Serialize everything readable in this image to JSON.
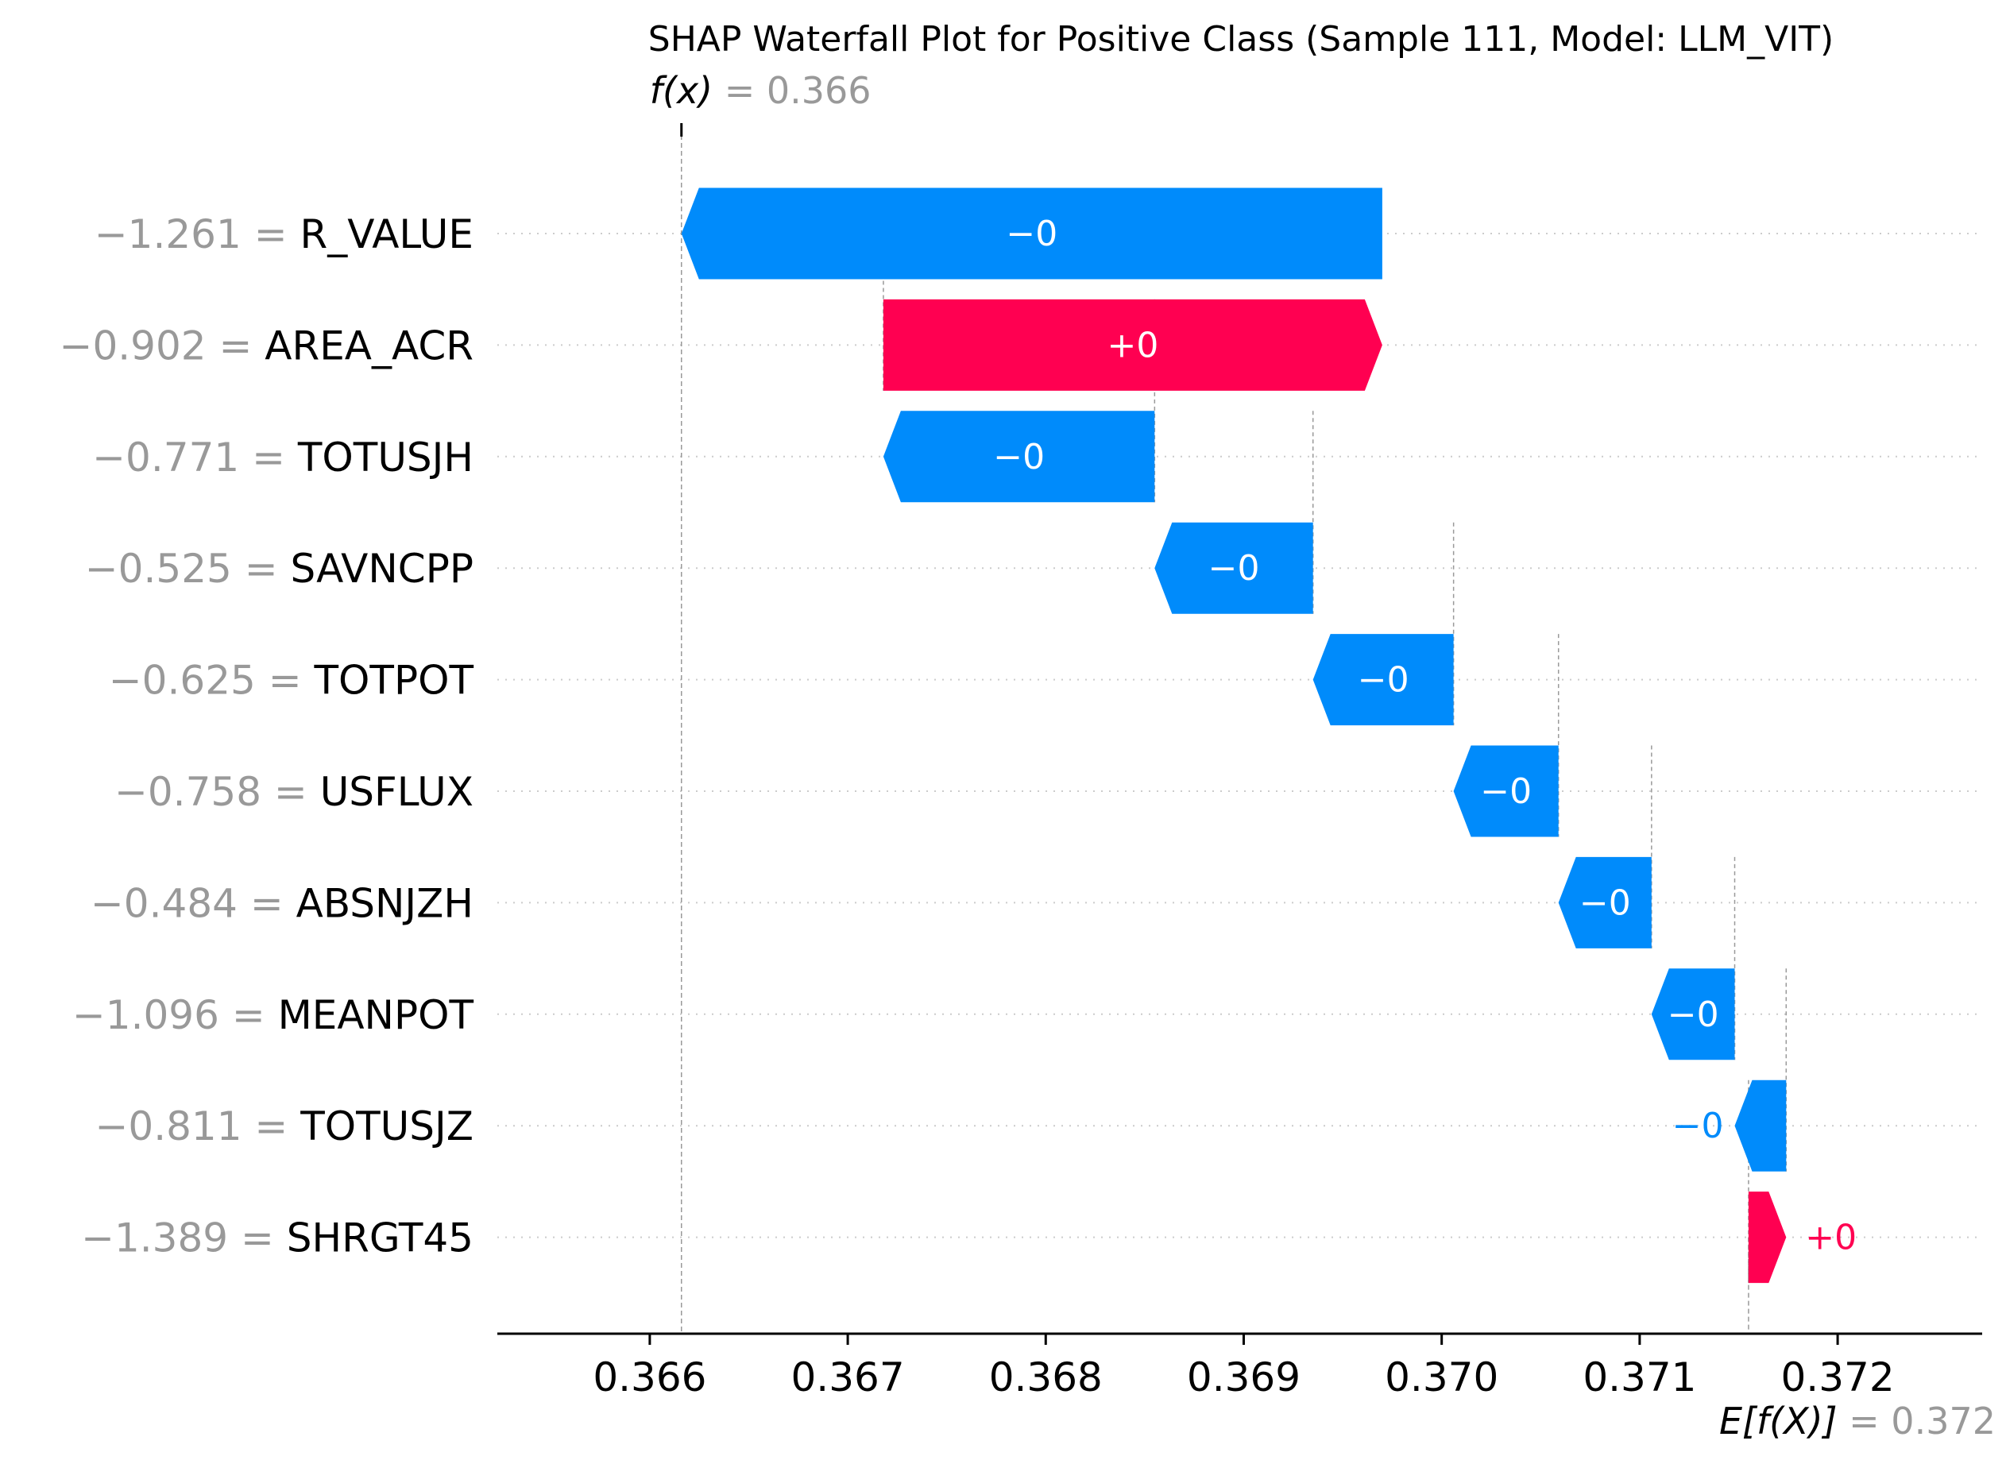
{
  "chart_data": {
    "type": "waterfall",
    "title": "SHAP Waterfall Plot for Positive Class (Sample 111, Model: LLM_VIT)",
    "fx": {
      "value": 0.36616,
      "label_italic": "f(x)",
      "label_value": "= 0.366"
    },
    "base": {
      "value": 0.37155,
      "label_italic": "E[f(X)]",
      "label_value": "= 0.372"
    },
    "xlim": [
      0.36523,
      0.37273
    ],
    "ticks": [
      {
        "value": 0.366,
        "label": "0.366"
      },
      {
        "value": 0.367,
        "label": "0.367"
      },
      {
        "value": 0.368,
        "label": "0.368"
      },
      {
        "value": 0.369,
        "label": "0.369"
      },
      {
        "value": 0.37,
        "label": "0.370"
      },
      {
        "value": 0.371,
        "label": "0.371"
      },
      {
        "value": 0.372,
        "label": "0.372"
      }
    ],
    "features": [
      {
        "name": "R_VALUE",
        "feature_value": "−1.261",
        "start": 0.3697,
        "end": 0.36616,
        "label": "−0",
        "sign": "neg"
      },
      {
        "name": "AREA_ACR",
        "feature_value": "−0.902",
        "start": 0.36718,
        "end": 0.3697,
        "label": "+0",
        "sign": "pos"
      },
      {
        "name": "TOTUSJH",
        "feature_value": "−0.771",
        "start": 0.36855,
        "end": 0.36718,
        "label": "−0",
        "sign": "neg"
      },
      {
        "name": "SAVNCPP",
        "feature_value": "−0.525",
        "start": 0.36935,
        "end": 0.36855,
        "label": "−0",
        "sign": "neg"
      },
      {
        "name": "TOTPOT",
        "feature_value": "−0.625",
        "start": 0.37006,
        "end": 0.36935,
        "label": "−0",
        "sign": "neg"
      },
      {
        "name": "USFLUX",
        "feature_value": "−0.758",
        "start": 0.37059,
        "end": 0.37006,
        "label": "−0",
        "sign": "neg"
      },
      {
        "name": "ABSNJZH",
        "feature_value": "−0.484",
        "start": 0.37106,
        "end": 0.37059,
        "label": "−0",
        "sign": "neg"
      },
      {
        "name": "MEANPOT",
        "feature_value": "−1.096",
        "start": 0.37148,
        "end": 0.37106,
        "label": "−0",
        "sign": "neg"
      },
      {
        "name": "TOTUSJZ",
        "feature_value": "−0.811",
        "start": 0.37174,
        "end": 0.37148,
        "label": "−0",
        "sign": "neg"
      },
      {
        "name": "SHRGT45",
        "feature_value": "−1.389",
        "start": 0.37155,
        "end": 0.37174,
        "label": "+0",
        "sign": "pos"
      }
    ],
    "colors": {
      "positive": "#ff0051",
      "negative": "#008bfb",
      "gray": "#999999",
      "text": "#000000",
      "grid": "#cccccc"
    },
    "grid": "dotted horizontal per row"
  }
}
